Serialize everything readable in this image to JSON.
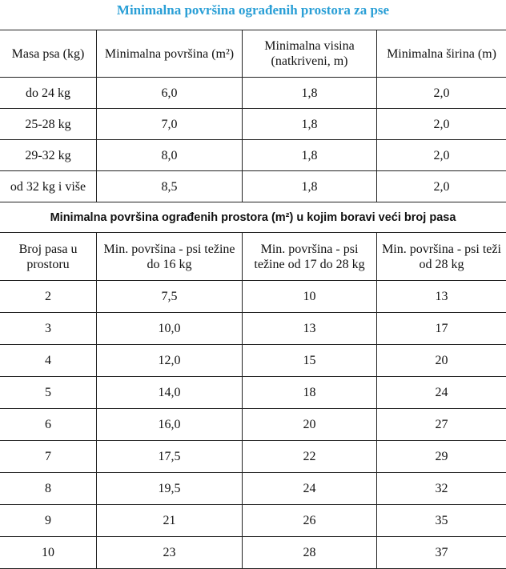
{
  "title": "Minimalna površina ograđenih prostora za pse",
  "colors": {
    "title": "#2a9fd6"
  },
  "table1": {
    "headers": [
      "Masa psa (kg)",
      "Minimalna površina (m²)",
      "Minimalna visina (natkriveni, m)",
      "Minimalna širina (m)"
    ],
    "rows": [
      [
        "do 24 kg",
        "6,0",
        "1,8",
        "2,0"
      ],
      [
        "25-28 kg",
        "7,0",
        "1,8",
        "2,0"
      ],
      [
        "29-32 kg",
        "8,0",
        "1,8",
        "2,0"
      ],
      [
        "od 32 kg i više",
        "8,5",
        "1,8",
        "2,0"
      ]
    ]
  },
  "table2": {
    "title": "Minimalna površina ograđenih prostora (m²) u kojim boravi veći broj pasa",
    "headers": [
      "Broj pasa u prostoru",
      "Min. površina - psi težine do 16 kg",
      "Min. površina - psi težine od 17 do 28 kg",
      "Min. površina - psi teži od 28 kg"
    ],
    "rows": [
      [
        "2",
        "7,5",
        "10",
        "13"
      ],
      [
        "3",
        "10,0",
        "13",
        "17"
      ],
      [
        "4",
        "12,0",
        "15",
        "20"
      ],
      [
        "5",
        "14,0",
        "18",
        "24"
      ],
      [
        "6",
        "16,0",
        "20",
        "27"
      ],
      [
        "7",
        "17,5",
        "22",
        "29"
      ],
      [
        "8",
        "19,5",
        "24",
        "32"
      ],
      [
        "9",
        "21",
        "26",
        "35"
      ],
      [
        "10",
        "23",
        "28",
        "37"
      ]
    ]
  }
}
